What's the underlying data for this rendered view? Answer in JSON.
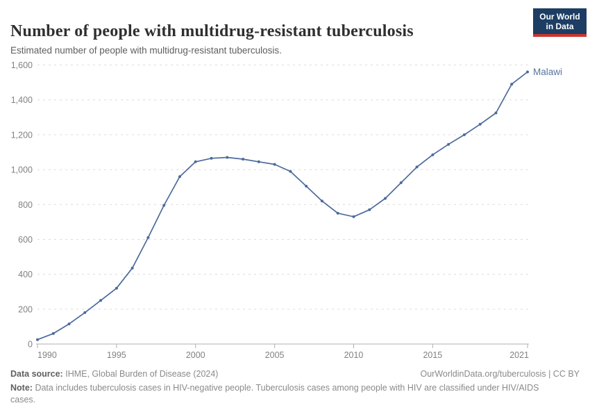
{
  "header": {
    "title": "Number of people with multidrug-resistant tuberculosis",
    "subtitle": "Estimated number of people with multidrug-resistant tuberculosis."
  },
  "logo": {
    "line1": "Our World",
    "line2": "in Data"
  },
  "chart_data": {
    "type": "line",
    "title": "Number of people with multidrug-resistant tuberculosis",
    "x": [
      1990,
      1991,
      1992,
      1993,
      1994,
      1995,
      1996,
      1997,
      1998,
      1999,
      2000,
      2001,
      2002,
      2003,
      2004,
      2005,
      2006,
      2007,
      2008,
      2009,
      2010,
      2011,
      2012,
      2013,
      2014,
      2015,
      2016,
      2017,
      2018,
      2019,
      2020,
      2021
    ],
    "series": [
      {
        "name": "Malawi",
        "values": [
          25,
          60,
          115,
          180,
          250,
          320,
          435,
          610,
          795,
          960,
          1045,
          1065,
          1070,
          1060,
          1045,
          1030,
          990,
          905,
          820,
          750,
          730,
          770,
          835,
          925,
          1015,
          1085,
          1145,
          1200,
          1260,
          1325,
          1490,
          1560
        ]
      }
    ],
    "ylim": [
      0,
      1600
    ],
    "yticks": [
      0,
      200,
      400,
      600,
      800,
      1000,
      1200,
      1400,
      1600
    ],
    "xticks": [
      1990,
      1995,
      2000,
      2005,
      2010,
      2015,
      2021
    ],
    "grid": true,
    "legend_position": "end-of-line-label",
    "entity_label": "Malawi"
  },
  "footer": {
    "source_label": "Data source:",
    "source_text": "IHME, Global Burden of Disease (2024)",
    "link_text": "OurWorldinData.org/tuberculosis | CC BY",
    "note_label": "Note:",
    "note_text": "Data includes tuberculosis cases in HIV-negative people. Tuberculosis cases among people with HIV are classified under HIV/AIDS cases."
  },
  "colors": {
    "line": "#4c6a9c",
    "entity_label": "#56749f",
    "grid": "#dcdcdc",
    "axis": "#b0b0b0",
    "tick_label": "#818181",
    "logo_bg": "#1d3d63",
    "logo_red": "#cf342e"
  }
}
